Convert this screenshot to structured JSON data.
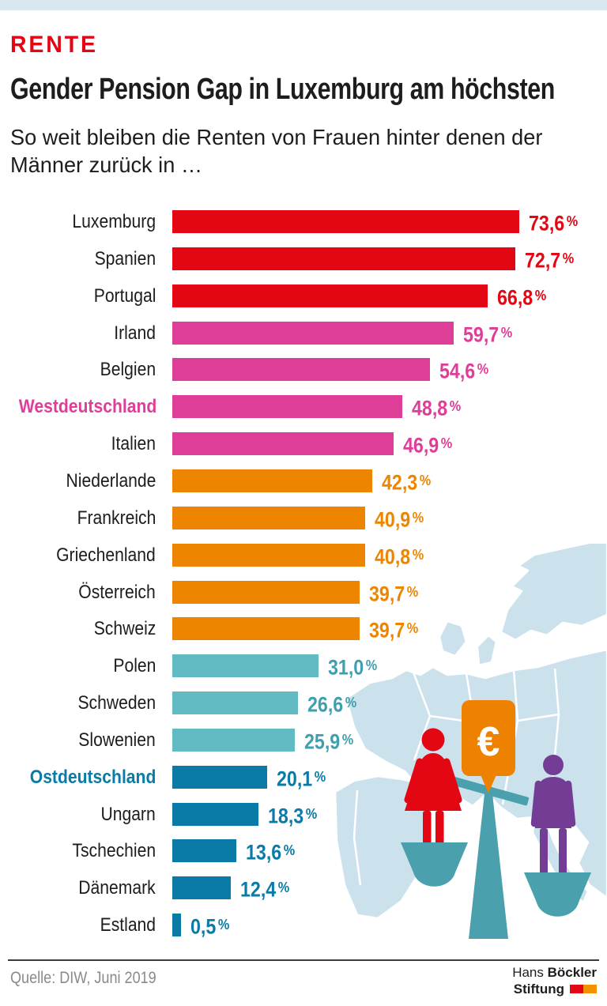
{
  "header": {
    "kicker": "RENTE",
    "title": "Gender Pension Gap in Luxemburg am höchsten",
    "subtitle": "So weit bleiben die Renten von Frauen hinter denen der\nMänner zurück in …"
  },
  "chart_data": {
    "type": "bar",
    "orientation": "horizontal",
    "title": "Gender Pension Gap in Luxemburg am höchsten",
    "unit": "%",
    "xlim": [
      0,
      80
    ],
    "grid": false,
    "categories": [
      "Luxemburg",
      "Spanien",
      "Portugal",
      "Irland",
      "Belgien",
      "Westdeutschland",
      "Italien",
      "Niederlande",
      "Frankreich",
      "Griechenland",
      "Österreich",
      "Schweiz",
      "Polen",
      "Schweden",
      "Slowenien",
      "Ostdeutschland",
      "Ungarn",
      "Tschechien",
      "Dänemark",
      "Estland"
    ],
    "values": [
      73.6,
      72.7,
      66.8,
      59.7,
      54.6,
      48.8,
      46.9,
      42.3,
      40.9,
      40.8,
      39.7,
      39.7,
      31.0,
      26.6,
      25.9,
      20.1,
      18.3,
      13.6,
      12.4,
      0.5
    ],
    "value_labels": [
      "73,6 %",
      "72,7 %",
      "66,8 %",
      "59,7 %",
      "54,6 %",
      "48,8 %",
      "46,9 %",
      "42,3 %",
      "40,9 %",
      "40,8 %",
      "39,7 %",
      "39,7 %",
      "31,0 %",
      "26,6 %",
      "25,9 %",
      "20,1 %",
      "18,3 %",
      "13,6 %",
      "12,4 %",
      "0,5 %"
    ],
    "groups": [
      "red",
      "red",
      "red",
      "magenta",
      "magenta",
      "magenta",
      "magenta",
      "orange",
      "orange",
      "orange",
      "orange",
      "orange",
      "teal",
      "teal",
      "teal",
      "blue",
      "blue",
      "blue",
      "blue",
      "blue"
    ],
    "palette": {
      "red": "#e30613",
      "magenta": "#de3d98",
      "orange": "#ee8500",
      "teal": "#62bac3",
      "teal_text": "#3f9fae",
      "blue": "#0a7ba6"
    },
    "bold_categories": [
      "Westdeutschland",
      "Ostdeutschland"
    ],
    "label_color": "#1d1d1b"
  },
  "illustration": {
    "map_color": "#cbe2ec",
    "scale_color": "#4aa0ac",
    "woman_color": "#e30613",
    "man_color": "#733d96",
    "sign_color": "#ee8200",
    "sign_symbol": "€"
  },
  "footer": {
    "source": "Quelle: DIW, Juni 2019",
    "logo_line1_regular": "Hans",
    "logo_line1_bold": "Böckler",
    "logo_line2_bold": "Stiftung",
    "logo_flag_colors": [
      "#e30613",
      "#f39200"
    ]
  }
}
